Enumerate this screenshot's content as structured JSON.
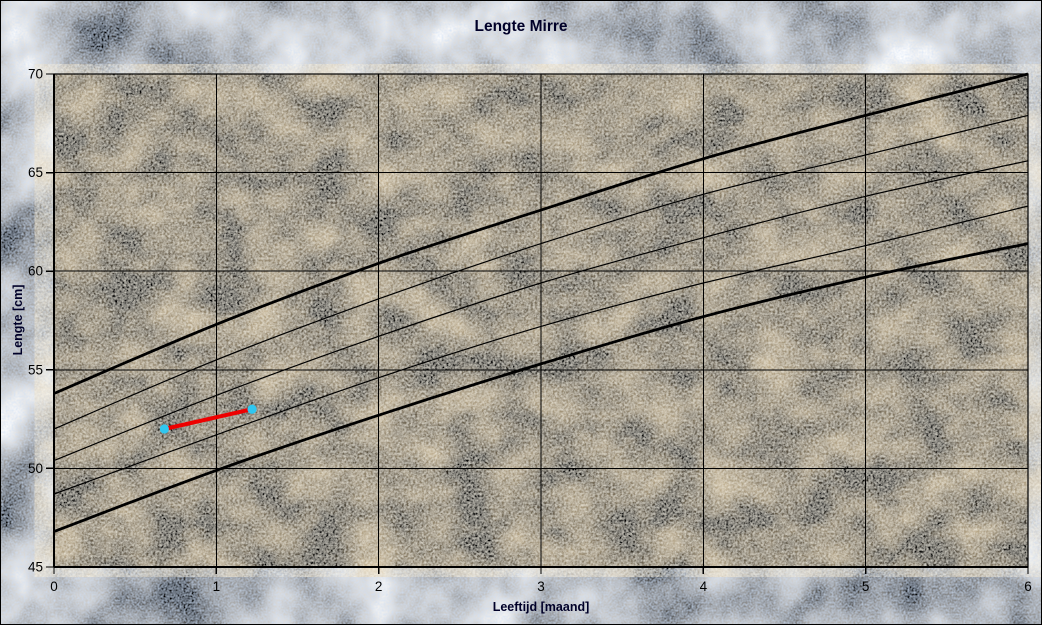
{
  "window": {
    "title": "Lengte Mirre"
  },
  "chart_data": {
    "type": "line",
    "title": "Lengte Mirre",
    "xlabel": "Leeftijd [maand]",
    "ylabel": "Lengte [cm]",
    "xlim": [
      0,
      6
    ],
    "ylim": [
      45,
      70
    ],
    "x_ticks": [
      "0",
      "1",
      "2",
      "3",
      "4",
      "5",
      "6"
    ],
    "y_ticks": [
      "45",
      "50",
      "55",
      "60",
      "65",
      "70"
    ],
    "grid": true,
    "legend": "none",
    "reference_months": [
      0,
      1,
      2,
      3,
      4,
      5,
      6
    ],
    "reference_curves": [
      {
        "name": "upper-thick-percentile",
        "style": "thick",
        "values": [
          53.8,
          57.3,
          60.4,
          63.1,
          65.7,
          67.9,
          70.0
        ]
      },
      {
        "name": "upper-thin-percentile",
        "style": "thin",
        "values": [
          52.0,
          55.5,
          58.6,
          61.4,
          63.9,
          65.9,
          67.9
        ]
      },
      {
        "name": "middle-thin-percentile",
        "style": "thin",
        "values": [
          50.4,
          53.7,
          56.7,
          59.4,
          61.7,
          63.8,
          65.6
        ]
      },
      {
        "name": "lower-thin-percentile",
        "style": "thin",
        "values": [
          48.7,
          51.7,
          54.6,
          57.2,
          59.4,
          61.3,
          63.3
        ]
      },
      {
        "name": "lower-thick-percentile",
        "style": "thick",
        "values": [
          46.8,
          49.9,
          52.7,
          55.3,
          57.7,
          59.7,
          61.4
        ]
      }
    ],
    "measurements": {
      "series_name": "measured-length",
      "points": [
        {
          "x": 0.68,
          "y": 52.0
        },
        {
          "x": 1.22,
          "y": 53.0
        }
      ]
    },
    "colors": {
      "outer_background": "#c6daf0",
      "plot_background": "#e8d5ae",
      "curve": "#000000",
      "grid": "#000000",
      "measurement_line": "#ee0000",
      "measurement_marker": "#2fc7f0",
      "title_text": "#000028"
    }
  }
}
